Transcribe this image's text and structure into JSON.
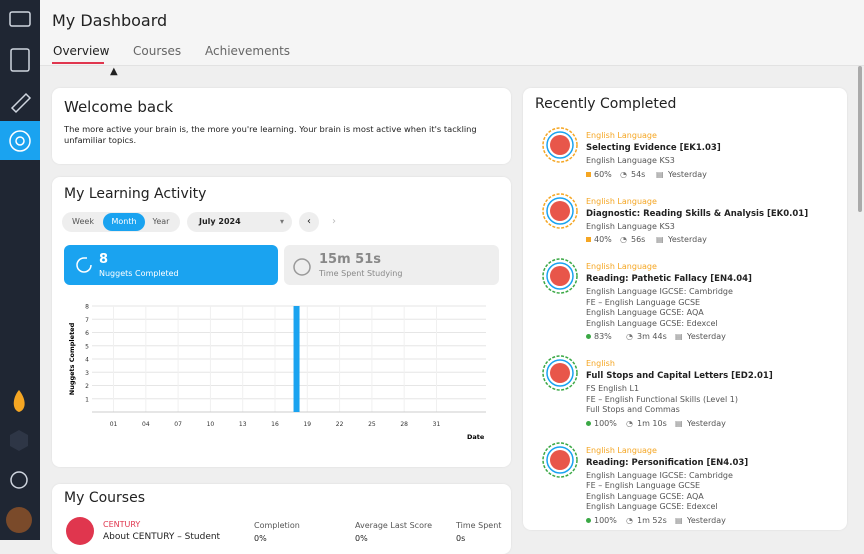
{
  "header": {
    "title": "My Dashboard"
  },
  "tabs": [
    "Overview",
    "Courses",
    "Achievements"
  ],
  "welcome": {
    "title": "Welcome back",
    "text": "The more active your brain is, the more you're learning. Your brain is most active when it's tackling unfamiliar topics."
  },
  "activity": {
    "title": "My Learning Activity",
    "periods": [
      "Week",
      "Month",
      "Year"
    ],
    "month": "July 2024",
    "stats": [
      {
        "value": "8",
        "label": "Nuggets Completed"
      },
      {
        "value": "15m 51s",
        "label": "Time Spent Studying"
      }
    ]
  },
  "chart_data": {
    "type": "bar",
    "y_label": "Nuggets Completed",
    "x_label": "Date",
    "x": [
      18
    ],
    "values": [
      8
    ],
    "color": "#1aa3f0",
    "xlim": [
      -1,
      35.6
    ],
    "ylim": [
      0,
      8
    ],
    "grid": true,
    "xticks": [
      {
        "value": 1,
        "label": "01"
      },
      {
        "value": 4,
        "label": "04"
      },
      {
        "value": 7,
        "label": "07"
      },
      10,
      13,
      16,
      19,
      22,
      25,
      28,
      31
    ],
    "yticks": [
      1,
      2,
      3,
      4,
      5,
      6,
      7,
      8
    ]
  },
  "recent": {
    "title": "Recently Completed",
    "items": [
      {
        "subject": "English Language",
        "title": "Selecting Evidence [EK1.03]",
        "tags": [
          "English Language KS3"
        ],
        "score": "60%",
        "time": "54s",
        "when": "Yesterday",
        "color": "#f5a623"
      },
      {
        "subject": "English Language",
        "title": "Diagnostic: Reading Skills & Analysis [EK0.01]",
        "tags": [
          "English Language KS3"
        ],
        "score": "40%",
        "time": "56s",
        "when": "Yesterday",
        "color": "#f5a623"
      },
      {
        "subject": "English Language",
        "title": "Reading: Pathetic Fallacy [EN4.04]",
        "tags": [
          "English Language IGCSE: Cambridge",
          "FE – English Language GCSE",
          "English Language GCSE: AQA",
          "English Language GCSE: Edexcel"
        ],
        "score": "83%",
        "time": "3m 44s",
        "when": "Yesterday",
        "color": "#3aa845"
      },
      {
        "subject": "English",
        "title": "Full Stops and Capital Letters [ED2.01]",
        "tags": [
          "FS English L1",
          "FE – English Functional Skills (Level 1)",
          "Full Stops and Commas"
        ],
        "score": "100%",
        "time": "1m 10s",
        "when": "Yesterday",
        "color": "#3aa845"
      },
      {
        "subject": "English Language",
        "title": "Reading: Personification [EN4.03]",
        "tags": [
          "English Language IGCSE: Cambridge",
          "FE – English Language GCSE",
          "English Language GCSE: AQA",
          "English Language GCSE: Edexcel"
        ],
        "score": "100%",
        "time": "1m 52s",
        "when": "Yesterday",
        "color": "#3aa845"
      }
    ]
  },
  "courses": {
    "title": "My Courses",
    "columns": [
      "Completion",
      "Average Last Score",
      "Time Spent"
    ],
    "rows": [
      {
        "brand": "CENTURY",
        "name": "About CENTURY – Student",
        "values": [
          "0%",
          "0%",
          "0s"
        ]
      }
    ]
  }
}
